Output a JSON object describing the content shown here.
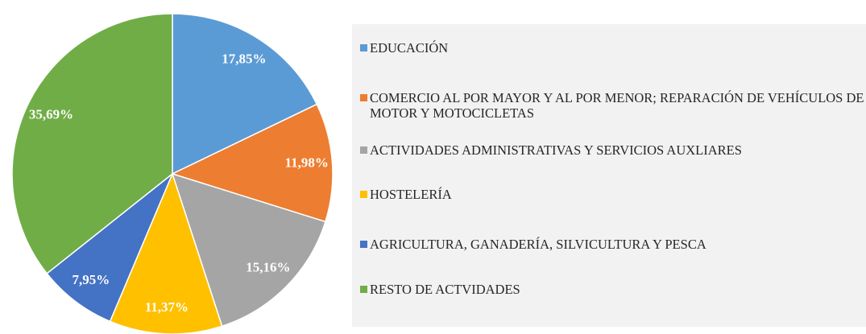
{
  "chart_data": {
    "type": "pie",
    "categories": [
      "EDUCACIÓN",
      "COMERCIO AL POR MAYOR Y AL POR MENOR; REPARACIÓN DE VEHÍCULOS DE MOTOR Y MOTOCICLETAS",
      "ACTIVIDADES ADMINISTRATIVAS Y SERVICIOS AUXLIARES",
      "HOSTELERÍA",
      "AGRICULTURA, GANADERÍA, SILVICULTURA Y PESCA",
      "RESTO DE ACTVIDADES"
    ],
    "values": [
      17.85,
      11.98,
      15.16,
      11.37,
      7.95,
      35.69
    ],
    "value_labels": [
      "17,85%",
      "11,98%",
      "15,16%",
      "11,37%",
      "7,95%",
      "35,69%"
    ],
    "colors": [
      "#5b9bd5",
      "#ed7d31",
      "#a5a5a5",
      "#ffc000",
      "#4472c4",
      "#70ad47"
    ],
    "legend": "right"
  }
}
